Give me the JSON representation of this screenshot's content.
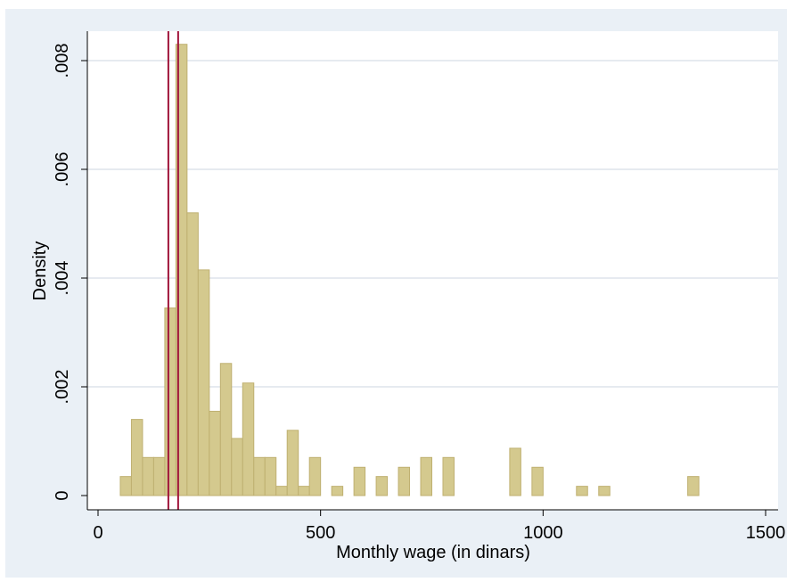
{
  "chart_data": {
    "type": "bar",
    "subtype": "histogram",
    "xlabel": "Monthly wage (in dinars)",
    "ylabel": "Density",
    "xlim": [
      0,
      1500
    ],
    "ylim": [
      0,
      0.0085
    ],
    "xticks": [
      {
        "value": 0,
        "label": "0"
      },
      {
        "value": 500,
        "label": "500"
      },
      {
        "value": 1000,
        "label": "1000"
      },
      {
        "value": 1500,
        "label": "1500"
      }
    ],
    "yticks": [
      {
        "value": 0,
        "label": "0"
      },
      {
        "value": 0.002,
        "label": ".002"
      },
      {
        "value": 0.004,
        "label": ".004"
      },
      {
        "value": 0.006,
        "label": ".006"
      },
      {
        "value": 0.008,
        "label": ".008"
      }
    ],
    "grid": "horizontal",
    "bin_width": 25,
    "bins": [
      {
        "start": 50,
        "density": 0.00035
      },
      {
        "start": 75,
        "density": 0.0014
      },
      {
        "start": 100,
        "density": 0.0007
      },
      {
        "start": 125,
        "density": 0.0007
      },
      {
        "start": 150,
        "density": 0.00345
      },
      {
        "start": 175,
        "density": 0.0083
      },
      {
        "start": 200,
        "density": 0.0052
      },
      {
        "start": 225,
        "density": 0.00415
      },
      {
        "start": 250,
        "density": 0.00155
      },
      {
        "start": 275,
        "density": 0.00243
      },
      {
        "start": 300,
        "density": 0.00105
      },
      {
        "start": 325,
        "density": 0.00207
      },
      {
        "start": 350,
        "density": 0.0007
      },
      {
        "start": 375,
        "density": 0.0007
      },
      {
        "start": 400,
        "density": 0.00017
      },
      {
        "start": 425,
        "density": 0.0012
      },
      {
        "start": 450,
        "density": 0.00017
      },
      {
        "start": 475,
        "density": 0.0007
      },
      {
        "start": 525,
        "density": 0.00017
      },
      {
        "start": 575,
        "density": 0.00052
      },
      {
        "start": 625,
        "density": 0.00035
      },
      {
        "start": 675,
        "density": 0.00052
      },
      {
        "start": 725,
        "density": 0.0007
      },
      {
        "start": 775,
        "density": 0.0007
      },
      {
        "start": 925,
        "density": 0.00087
      },
      {
        "start": 975,
        "density": 0.00052
      },
      {
        "start": 1075,
        "density": 0.00017
      },
      {
        "start": 1125,
        "density": 0.00017
      },
      {
        "start": 1325,
        "density": 0.00035
      }
    ],
    "vertical_lines": [
      158,
      180
    ],
    "colors": {
      "background": "#eaf0f6",
      "plot_area": "#ffffff",
      "bar_fill": "#d4c98e",
      "bar_edge": "#bfb071",
      "gridline": "#dde4ec",
      "reference_line": "#a0143a"
    }
  }
}
